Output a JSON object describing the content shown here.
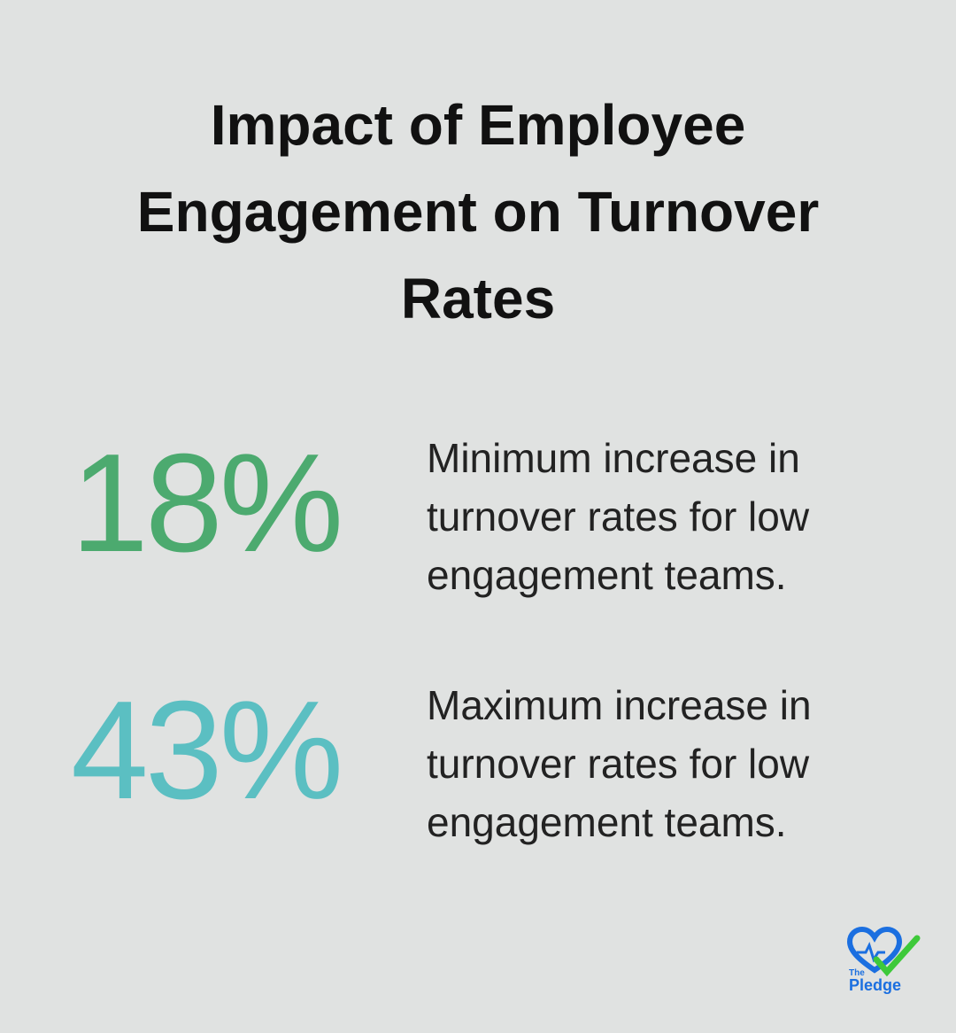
{
  "header": {
    "title": "Impact of Employee Engagement on Turnover Rates"
  },
  "stats": [
    {
      "value": "18%",
      "description": "Minimum increase in turnover rates for low engagement teams.",
      "color": "#4caa6f"
    },
    {
      "value": "43%",
      "description": "Maximum increase in turnover rates for low engagement teams.",
      "color": "#5bbfc2"
    }
  ],
  "logo": {
    "small": "The",
    "name": "Pledge"
  }
}
